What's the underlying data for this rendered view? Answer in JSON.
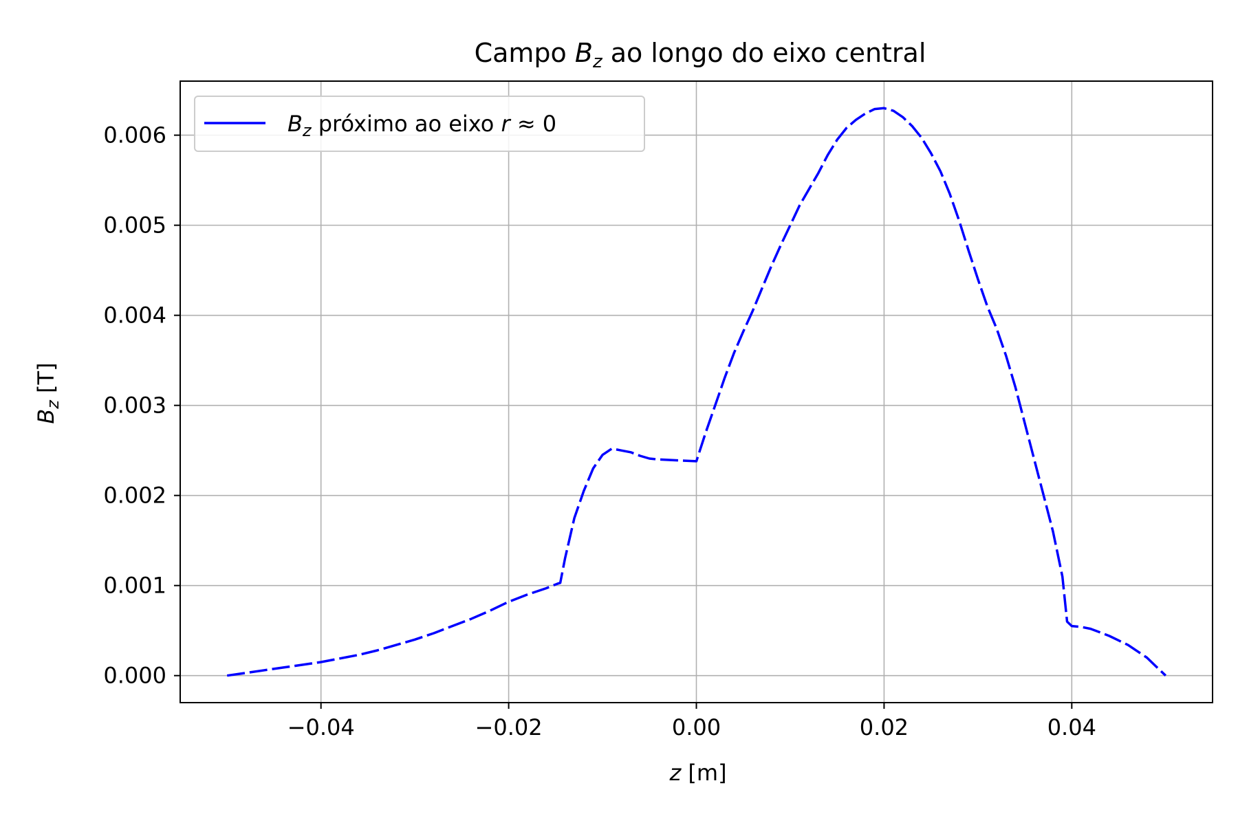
{
  "chart_data": {
    "type": "line",
    "title_parts": [
      "Campo ",
      "B",
      "z",
      " ao longo do eixo central"
    ],
    "xlabel_parts": [
      "z",
      " [m]"
    ],
    "ylabel_parts": [
      "B",
      "z",
      " [T]"
    ],
    "legend": {
      "placement": "upper-left",
      "entry_parts": [
        "B",
        "z",
        " próximo ao eixo ",
        "r",
        " ≈ 0"
      ]
    },
    "grid": true,
    "xlim": [
      -0.055,
      0.055
    ],
    "ylim": [
      -0.0003,
      0.0066
    ],
    "xticks": [
      -0.04,
      -0.02,
      0.0,
      0.02,
      0.04
    ],
    "xtick_labels": [
      "−0.04",
      "−0.02",
      "0.00",
      "0.02",
      "0.04"
    ],
    "yticks": [
      0.0,
      0.001,
      0.002,
      0.003,
      0.004,
      0.005,
      0.006
    ],
    "ytick_labels": [
      "0.000",
      "0.001",
      "0.002",
      "0.003",
      "0.004",
      "0.005",
      "0.006"
    ],
    "series": [
      {
        "name": "Bz próximo ao eixo r ≈ 0",
        "color": "#0000ff",
        "x": [
          -0.05,
          -0.048,
          -0.046,
          -0.044,
          -0.042,
          -0.04,
          -0.038,
          -0.036,
          -0.034,
          -0.032,
          -0.03,
          -0.028,
          -0.026,
          -0.024,
          -0.022,
          -0.02,
          -0.018,
          -0.016,
          -0.0148,
          -0.0145,
          -0.014,
          -0.013,
          -0.012,
          -0.011,
          -0.01,
          -0.009,
          -0.008,
          -0.007,
          -0.006,
          -0.005,
          -0.004,
          -0.002,
          0.0,
          0.001,
          0.002,
          0.003,
          0.004,
          0.005,
          0.006,
          0.007,
          0.008,
          0.009,
          0.01,
          0.011,
          0.012,
          0.013,
          0.014,
          0.015,
          0.016,
          0.017,
          0.018,
          0.019,
          0.02,
          0.021,
          0.022,
          0.023,
          0.024,
          0.025,
          0.026,
          0.027,
          0.028,
          0.029,
          0.03,
          0.031,
          0.032,
          0.033,
          0.034,
          0.035,
          0.036,
          0.037,
          0.038,
          0.039,
          0.0395,
          0.04,
          0.041,
          0.042,
          0.043,
          0.044,
          0.045,
          0.046,
          0.047,
          0.048,
          0.049,
          0.05
        ],
        "y": [
          0.0,
          3e-05,
          6e-05,
          9e-05,
          0.00012,
          0.00015,
          0.00019,
          0.00023,
          0.00028,
          0.00034,
          0.0004,
          0.00047,
          0.00055,
          0.00063,
          0.00072,
          0.00082,
          0.0009,
          0.00097,
          0.00102,
          0.00103,
          0.0013,
          0.00175,
          0.00205,
          0.0023,
          0.00245,
          0.00252,
          0.0025,
          0.00248,
          0.00244,
          0.00241,
          0.0024,
          0.00239,
          0.00238,
          0.0027,
          0.003,
          0.0033,
          0.00358,
          0.00382,
          0.00405,
          0.0043,
          0.00455,
          0.00478,
          0.005,
          0.00522,
          0.0054,
          0.00558,
          0.00578,
          0.00595,
          0.00608,
          0.00617,
          0.00624,
          0.00629,
          0.0063,
          0.00627,
          0.0062,
          0.0061,
          0.00597,
          0.0058,
          0.0056,
          0.00535,
          0.00505,
          0.00472,
          0.0044,
          0.0041,
          0.00385,
          0.00355,
          0.0032,
          0.0028,
          0.0024,
          0.002,
          0.0016,
          0.0011,
          0.0006,
          0.00055,
          0.00054,
          0.00052,
          0.00048,
          0.00044,
          0.00039,
          0.00034,
          0.00027,
          0.0002,
          0.0001,
          0.0
        ]
      }
    ]
  }
}
